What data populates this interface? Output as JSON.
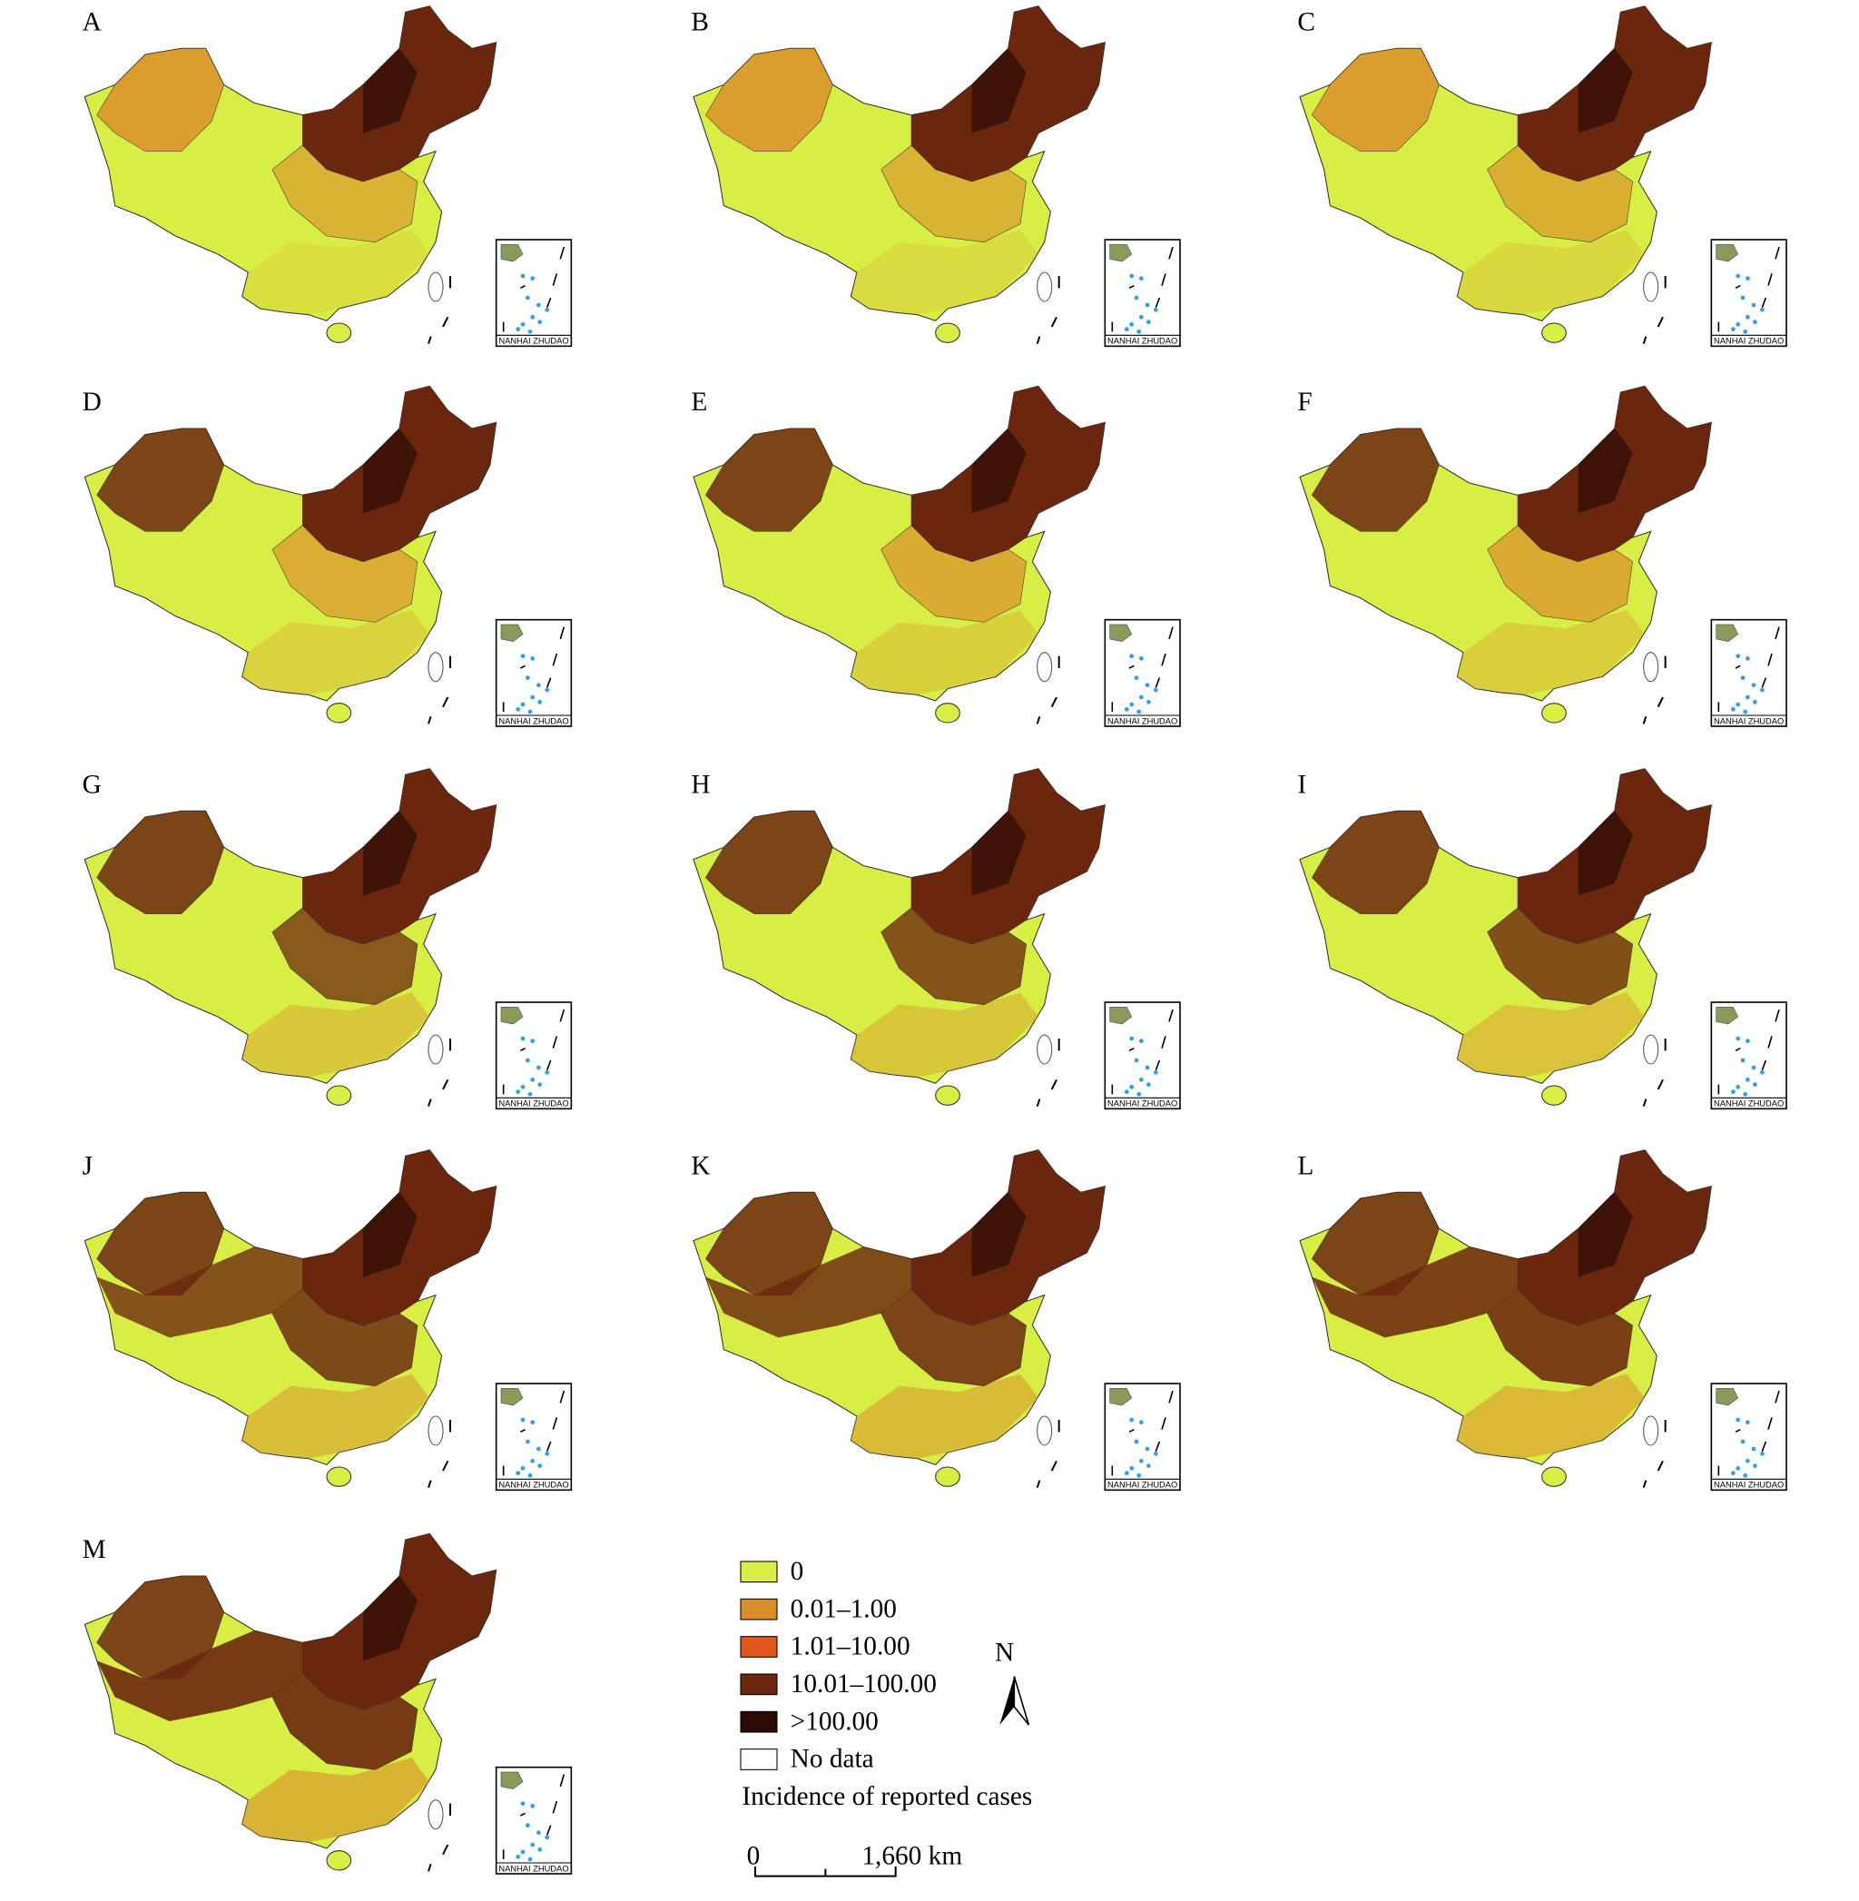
{
  "panels": [
    {
      "label": "A"
    },
    {
      "label": "B"
    },
    {
      "label": "C"
    },
    {
      "label": "D"
    },
    {
      "label": "E"
    },
    {
      "label": "F"
    },
    {
      "label": "G"
    },
    {
      "label": "H"
    },
    {
      "label": "I"
    },
    {
      "label": "J"
    },
    {
      "label": "K"
    },
    {
      "label": "L"
    },
    {
      "label": "M"
    }
  ],
  "inset_label": "NANHAI ZHUDAO",
  "legend": {
    "items": [
      {
        "label": "0",
        "color": "#d9ee44"
      },
      {
        "label": "0.01–1.00",
        "color": "#d98e2a"
      },
      {
        "label": "1.01–10.00",
        "color": "#e0571e"
      },
      {
        "label": "10.01–100.00",
        "color": "#6b270e"
      },
      {
        "label": ">100.00",
        "color": "#2a0c04"
      },
      {
        "label": "No data",
        "color": "#ffffff"
      }
    ],
    "title": "Incidence of reported cases"
  },
  "north": "N",
  "scale_bar": {
    "start": "0",
    "end": "1,660 km"
  }
}
